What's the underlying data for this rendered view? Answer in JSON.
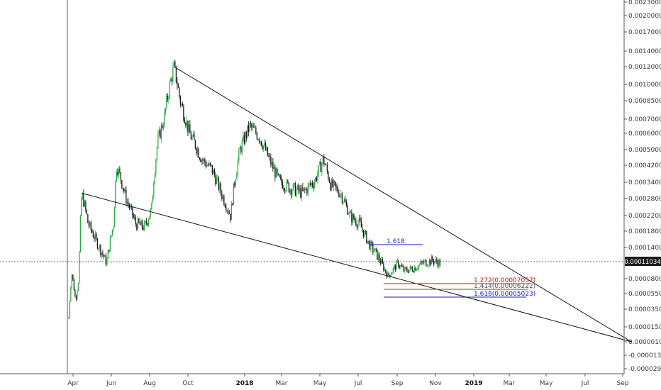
{
  "chart_data": {
    "type": "candlestick",
    "title": "",
    "xlabel": "",
    "ylabel": "",
    "price_axis_labels": [
      "0.00230000",
      "0.00200000",
      "0.00170000",
      "0.00140000",
      "0.00120000",
      "0.00100000",
      "0.00085000",
      "0.00070000",
      "0.00060000",
      "0.00050000",
      "0.00042000",
      "0.00034000",
      "0.00028000",
      "0.00022000",
      "0.00018000",
      "0.00014000",
      "0.00008000",
      "0.00005500",
      "0.00003500",
      "0.00001500",
      "0.00000100",
      "-0.00001300",
      "-0.00002900"
    ],
    "time_axis_labels": [
      {
        "label": "Apr",
        "bold": false
      },
      {
        "label": "Jun",
        "bold": false
      },
      {
        "label": "Aug",
        "bold": false
      },
      {
        "label": "Oct",
        "bold": false
      },
      {
        "label": "2018",
        "bold": true
      },
      {
        "label": "Mar",
        "bold": false
      },
      {
        "label": "May",
        "bold": false
      },
      {
        "label": "Jul",
        "bold": false
      },
      {
        "label": "Sep",
        "bold": false
      },
      {
        "label": "Nov",
        "bold": false
      },
      {
        "label": "2019",
        "bold": true
      },
      {
        "label": "Mar",
        "bold": false
      },
      {
        "label": "May",
        "bold": false
      },
      {
        "label": "Jul",
        "bold": false
      },
      {
        "label": "Sep",
        "bold": false
      }
    ],
    "current_price": "0.00011034",
    "price_path_approx": [
      [
        "2017-03-25",
        2.5e-05
      ],
      [
        "2017-03-30",
        9e-05
      ],
      [
        "2017-04-05",
        4.5e-05
      ],
      [
        "2017-04-10",
        8e-05
      ],
      [
        "2017-04-15",
        0.0003
      ],
      [
        "2017-04-25",
        0.0002
      ],
      [
        "2017-05-10",
        0.00015
      ],
      [
        "2017-05-25",
        0.00011
      ],
      [
        "2017-06-05",
        0.0002
      ],
      [
        "2017-06-10",
        0.00042
      ],
      [
        "2017-06-25",
        0.00028
      ],
      [
        "2017-07-10",
        0.0002
      ],
      [
        "2017-07-25",
        0.00019
      ],
      [
        "2017-08-05",
        0.00024
      ],
      [
        "2017-08-15",
        0.00055
      ],
      [
        "2017-08-25",
        0.0007
      ],
      [
        "2017-09-10",
        0.0012
      ],
      [
        "2017-09-20",
        0.00085
      ],
      [
        "2017-10-05",
        0.0006
      ],
      [
        "2017-10-25",
        0.00045
      ],
      [
        "2017-11-10",
        0.0004
      ],
      [
        "2017-11-25",
        0.0003
      ],
      [
        "2017-12-10",
        0.00022
      ],
      [
        "2017-12-25",
        0.0005
      ],
      [
        "2018-01-10",
        0.00065
      ],
      [
        "2018-01-25",
        0.00058
      ],
      [
        "2018-02-10",
        0.00045
      ],
      [
        "2018-02-25",
        0.00035
      ],
      [
        "2018-03-15",
        0.00032
      ],
      [
        "2018-04-05",
        0.0003
      ],
      [
        "2018-04-25",
        0.00035
      ],
      [
        "2018-05-08",
        0.00045
      ],
      [
        "2018-05-20",
        0.00033
      ],
      [
        "2018-06-05",
        0.0003
      ],
      [
        "2018-06-20",
        0.00022
      ],
      [
        "2018-07-05",
        0.0002
      ],
      [
        "2018-07-20",
        0.00015
      ],
      [
        "2018-08-05",
        0.00012
      ],
      [
        "2018-08-20",
        8.5e-05
      ],
      [
        "2018-09-05",
        0.00011
      ],
      [
        "2018-09-15",
        9.5e-05
      ],
      [
        "2018-09-30",
        0.0001
      ],
      [
        "2018-10-15",
        0.00011
      ],
      [
        "2018-10-30",
        0.000115
      ],
      [
        "2018-11-12",
        0.00011034
      ]
    ],
    "trendlines": [
      {
        "from": [
          "2017-09-10",
          0.0012
        ],
        "to": [
          "2019-09-15",
          1e-06
        ]
      },
      {
        "from": [
          "2017-04-15",
          0.0003
        ],
        "to": [
          "2019-09-15",
          1e-06
        ]
      }
    ],
    "fib_levels": [
      {
        "label": "1.618",
        "color": "#1a1acc"
      },
      {
        "label": "1.272(0.00007057)",
        "color": "#cc1111"
      },
      {
        "label": "1.414(0.00006222)",
        "color": "#555555"
      },
      {
        "label": "1.618(0.00005023)",
        "color": "#1a1acc"
      }
    ],
    "colors": {
      "up": "#26a641",
      "down": "#111111",
      "axis": "#555555"
    },
    "grid": false
  }
}
